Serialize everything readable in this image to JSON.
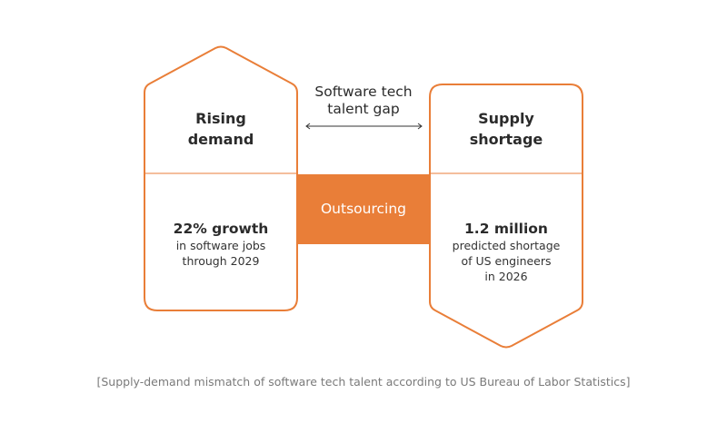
{
  "colors": {
    "accent": "#E97E38",
    "text": "#2b2b2b",
    "caption": "#7a7a7a"
  },
  "left": {
    "title_line1": "Rising",
    "title_line2": "demand",
    "stat": "22% growth",
    "desc_line1": "in software jobs",
    "desc_line2": "through 2029"
  },
  "center": {
    "gap_line1": "Software tech",
    "gap_line2": "talent gap",
    "bridge": "Outsourcing"
  },
  "right": {
    "title_line1": "Supply",
    "title_line2": "shortage",
    "stat": "1.2 million",
    "desc_line1": "predicted shortage",
    "desc_line2": "of US engineers",
    "desc_line3": "in 2026"
  },
  "caption": "[Supply-demand mismatch of software tech talent according to US Bureau of Labor Statistics]"
}
